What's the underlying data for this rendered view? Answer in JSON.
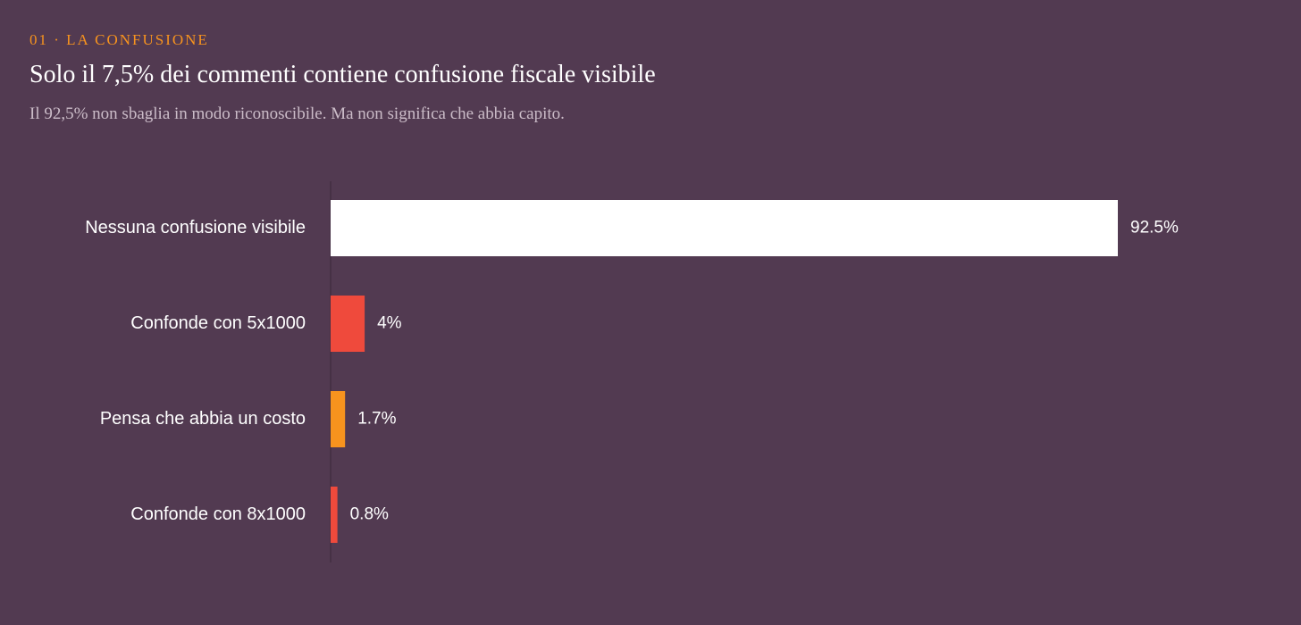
{
  "header": {
    "kicker": "01 · LA CONFUSIONE",
    "title": "Solo il 7,5% dei commenti contiene confusione fiscale visibile",
    "subtitle": "Il 92,5% non sbaglia in modo riconoscibile. Ma non significa che abbia capito."
  },
  "colors": {
    "background": "#523a51",
    "kicker": "#f7931e",
    "axis": "#3a2839"
  },
  "chart_data": {
    "type": "bar",
    "orientation": "horizontal",
    "categories": [
      "Nessuna confusione visibile",
      "Confonde con 5x1000",
      "Pensa che abbia un costo",
      "Confonde con 8x1000"
    ],
    "values": [
      92.5,
      4,
      1.7,
      0.8
    ],
    "value_labels": [
      "92.5%",
      "4%",
      "1.7%",
      "0.8%"
    ],
    "bar_colors": [
      "#ffffff",
      "#ef4a3c",
      "#f7931e",
      "#ef4a3c"
    ],
    "xlim": [
      0,
      100
    ],
    "grid": false,
    "legend": "none",
    "title": "Solo il 7,5% dei commenti contiene confusione fiscale visibile",
    "xlabel": "",
    "ylabel": ""
  }
}
